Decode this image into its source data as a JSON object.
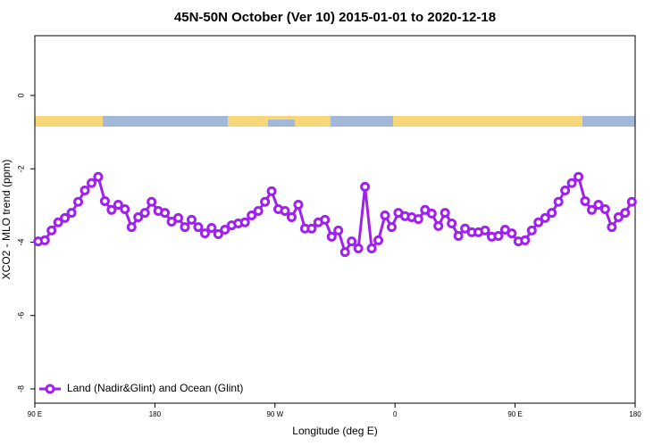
{
  "chart_data": {
    "type": "line",
    "title": "45N-50N October (Ver 10)   2015-01-01 to 2020-12-18",
    "x_label": "Longitude (deg E)",
    "y_label": "XCO2 - MLO trend (ppm)",
    "xlim": [
      90,
      540
    ],
    "ylim": [
      -8.39,
      1.63
    ],
    "xticks": [
      {
        "value": 90,
        "label": "90 E"
      },
      {
        "value": 180,
        "label": "180"
      },
      {
        "value": 270,
        "label": "90 W"
      },
      {
        "value": 360,
        "label": "0"
      },
      {
        "value": 450,
        "label": "90 E"
      },
      {
        "value": 540,
        "label": "180"
      }
    ],
    "yticks": [
      0,
      -2,
      -4,
      -6,
      -8
    ],
    "legend_position": "bottom-left",
    "x": [
      92.5,
      97.5,
      102.5,
      107.5,
      112.5,
      117.5,
      122.5,
      127.5,
      132.5,
      137.5,
      142.5,
      147.5,
      152.5,
      157.5,
      162.5,
      167.5,
      172.5,
      177.5,
      182.5,
      187.5,
      192.5,
      197.5,
      202.5,
      207.5,
      212.5,
      217.5,
      222.5,
      227.5,
      232.5,
      237.5,
      242.5,
      247.5,
      252.5,
      257.5,
      262.5,
      267.5,
      272.5,
      277.5,
      282.5,
      287.5,
      292.5,
      297.5,
      302.5,
      307.5,
      312.5,
      317.5,
      322.5,
      327.5,
      332.5,
      337.5,
      342.5,
      347.5,
      352.5,
      357.5,
      362.5,
      367.5,
      372.5,
      377.5,
      382.5,
      387.5,
      392.5,
      397.5,
      402.5,
      407.5,
      412.5,
      417.5,
      422.5,
      427.5,
      432.5,
      437.5,
      442.5,
      447.5,
      452.5,
      457.5,
      462.5,
      467.5,
      472.5,
      477.5,
      482.5,
      487.5,
      492.5,
      497.5,
      502.5,
      507.5,
      512.5,
      517.5,
      522.5,
      527.5,
      532.5,
      537.5
    ],
    "series": [
      {
        "name": "Land (Nadir&Glint) and Ocean (Glint)",
        "color": "#a020f0",
        "values": [
          -3.98,
          -3.95,
          -3.68,
          -3.46,
          -3.34,
          -3.2,
          -2.9,
          -2.59,
          -2.39,
          -2.22,
          -2.88,
          -3.12,
          -2.98,
          -3.1,
          -3.59,
          -3.32,
          -3.2,
          -2.9,
          -3.15,
          -3.2,
          -3.44,
          -3.34,
          -3.59,
          -3.39,
          -3.59,
          -3.76,
          -3.61,
          -3.78,
          -3.66,
          -3.54,
          -3.49,
          -3.46,
          -3.27,
          -3.15,
          -2.9,
          -2.61,
          -3.1,
          -3.15,
          -3.32,
          -2.98,
          -3.63,
          -3.63,
          -3.46,
          -3.39,
          -3.85,
          -3.68,
          -4.27,
          -3.98,
          -4.17,
          -2.49,
          -4.17,
          -3.95,
          -3.27,
          -3.59,
          -3.2,
          -3.29,
          -3.32,
          -3.37,
          -3.12,
          -3.22,
          -3.56,
          -3.2,
          -3.49,
          -3.83,
          -3.63,
          -3.73,
          -3.73,
          -3.68,
          -3.85,
          -3.83,
          -3.66,
          -3.76,
          -3.98,
          -3.95,
          -3.68,
          -3.46,
          -3.34,
          -3.2,
          -2.9,
          -2.59,
          -2.39,
          -2.22,
          -2.88,
          -3.12,
          -2.98,
          -3.1,
          -3.59,
          -3.32,
          -3.2,
          -2.9
        ]
      }
    ]
  }
}
